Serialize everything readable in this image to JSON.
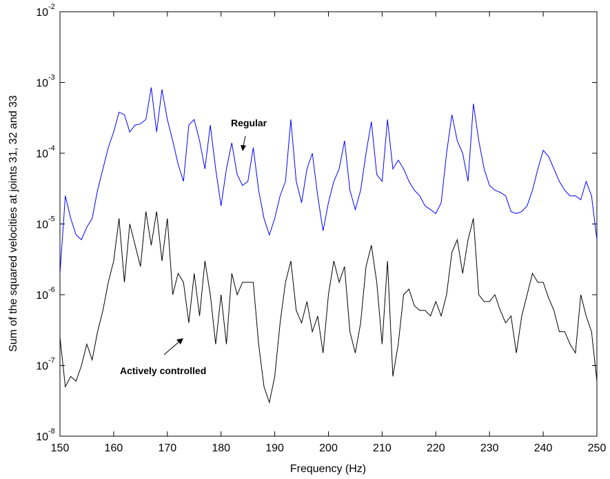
{
  "chart_data": {
    "type": "line",
    "xlabel": "Frequency (Hz)",
    "ylabel": "Sum of the squared velocities at joints 31, 32 and 33",
    "log_y": true,
    "xlim": [
      150,
      250
    ],
    "xticks": [
      150,
      160,
      170,
      180,
      190,
      200,
      210,
      220,
      230,
      240,
      250
    ],
    "ylim": [
      1e-08,
      0.01
    ],
    "yticks": [
      {
        "value": 0.01,
        "label": "10",
        "exponent": "-2"
      },
      {
        "value": 0.001,
        "label": "10",
        "exponent": "-3"
      },
      {
        "value": 0.0001,
        "label": "10",
        "exponent": "-4"
      },
      {
        "value": 1e-05,
        "label": "10",
        "exponent": "-5"
      },
      {
        "value": 1e-06,
        "label": "10",
        "exponent": "-6"
      },
      {
        "value": 1e-07,
        "label": "10",
        "exponent": "-7"
      },
      {
        "value": 1e-08,
        "label": "10",
        "exponent": "-8"
      }
    ],
    "annotations": [
      {
        "text": "Regular"
      },
      {
        "text": "Actively controlled"
      }
    ],
    "x": [
      150,
      151,
      152,
      153,
      154,
      155,
      156,
      157,
      158,
      159,
      160,
      161,
      162,
      163,
      164,
      165,
      166,
      167,
      168,
      169,
      170,
      171,
      172,
      173,
      174,
      175,
      176,
      177,
      178,
      179,
      180,
      181,
      182,
      183,
      184,
      185,
      186,
      187,
      188,
      189,
      190,
      191,
      192,
      193,
      194,
      195,
      196,
      197,
      198,
      199,
      200,
      201,
      202,
      203,
      204,
      205,
      206,
      207,
      208,
      209,
      210,
      211,
      212,
      213,
      214,
      215,
      216,
      217,
      218,
      219,
      220,
      221,
      222,
      223,
      224,
      225,
      226,
      227,
      228,
      229,
      230,
      231,
      232,
      233,
      234,
      235,
      236,
      237,
      238,
      239,
      240,
      241,
      242,
      243,
      244,
      245,
      246,
      247,
      248,
      249,
      250
    ],
    "series": [
      {
        "color": "#0000ff",
        "values": [
          2e-06,
          2.5e-05,
          1.2e-05,
          7e-06,
          6e-06,
          9e-06,
          1.2e-05,
          3e-05,
          6e-05,
          0.00012,
          0.0002,
          0.00038,
          0.00035,
          0.0002,
          0.00025,
          0.00026,
          0.0003,
          0.00085,
          0.0002,
          0.0008,
          0.0003,
          0.00015,
          7e-05,
          4e-05,
          0.00025,
          0.0003,
          0.00015,
          6e-05,
          0.00025,
          6e-05,
          1.8e-05,
          6e-05,
          0.00014,
          5e-05,
          3.5e-05,
          4e-05,
          0.00012,
          3e-05,
          1.2e-05,
          7e-06,
          1.2e-05,
          2.5e-05,
          4e-05,
          0.0003,
          4e-05,
          2e-05,
          6e-05,
          0.0001,
          2.5e-05,
          8e-06,
          2e-05,
          4e-05,
          6e-05,
          0.00015,
          3e-05,
          1.6e-05,
          3e-05,
          0.0001,
          0.00028,
          5e-05,
          4e-05,
          0.0003,
          6e-05,
          8e-05,
          6e-05,
          4e-05,
          3e-05,
          2.5e-05,
          1.8e-05,
          1.6e-05,
          1.4e-05,
          2e-05,
          0.0001,
          0.00035,
          0.00015,
          0.0001,
          4e-05,
          0.0005,
          0.00015,
          6e-05,
          3.5e-05,
          3e-05,
          2.8e-05,
          2.5e-05,
          1.5e-05,
          1.4e-05,
          1.5e-05,
          1.8e-05,
          3e-05,
          6e-05,
          0.00011,
          9e-05,
          6e-05,
          4e-05,
          3e-05,
          2.5e-05,
          2.5e-05,
          2.2e-05,
          4e-05,
          2.5e-05,
          6e-06
        ]
      },
      {
        "color": "#000000",
        "values": [
          2.5e-07,
          5e-08,
          7e-08,
          6e-08,
          1e-07,
          2e-07,
          1.2e-07,
          3e-07,
          6e-07,
          1.5e-06,
          3e-06,
          1.2e-05,
          1.5e-06,
          1e-05,
          5e-06,
          2.5e-06,
          1.5e-05,
          5e-06,
          1.5e-05,
          3e-06,
          1.2e-05,
          1e-06,
          2e-06,
          1.5e-06,
          4e-07,
          2e-06,
          5e-07,
          3e-06,
          1e-06,
          2e-07,
          1e-06,
          2e-07,
          2e-06,
          1e-06,
          1.5e-06,
          1.5e-06,
          1.5e-06,
          2e-07,
          5e-08,
          3e-08,
          7e-08,
          4e-07,
          1.5e-06,
          3e-06,
          6e-07,
          4e-07,
          8e-07,
          3e-07,
          5e-07,
          1.5e-07,
          1e-06,
          3e-06,
          1.5e-06,
          2.5e-06,
          3e-07,
          1.5e-07,
          4e-07,
          2.5e-06,
          5e-06,
          1.5e-06,
          2e-07,
          3e-06,
          7e-08,
          2e-07,
          1e-06,
          1.2e-06,
          7e-07,
          6e-07,
          6e-07,
          5e-07,
          8e-07,
          5e-07,
          1e-06,
          4e-06,
          6e-06,
          2e-06,
          6e-06,
          1.2e-05,
          1e-06,
          8e-07,
          8e-07,
          1e-06,
          6e-07,
          4e-07,
          5e-07,
          1.5e-07,
          5e-07,
          1e-06,
          2e-06,
          1.5e-06,
          1.5e-06,
          9e-07,
          6e-07,
          3e-07,
          3e-07,
          2e-07,
          1.5e-07,
          1e-06,
          5e-07,
          3e-07,
          6e-08
        ]
      }
    ]
  }
}
